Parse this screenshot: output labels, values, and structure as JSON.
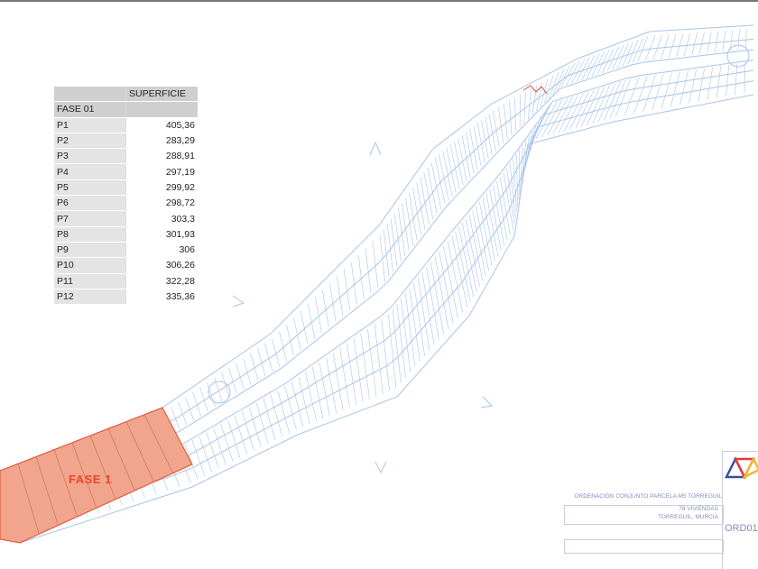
{
  "table": {
    "header_col": "SUPERFICIE",
    "header_row": "FASE 01",
    "rows": [
      {
        "parcel": "P1",
        "area": "405,36"
      },
      {
        "parcel": "P2",
        "area": "283,29"
      },
      {
        "parcel": "P3",
        "area": "288,91"
      },
      {
        "parcel": "P4",
        "area": "297,19"
      },
      {
        "parcel": "P5",
        "area": "299,92"
      },
      {
        "parcel": "P6",
        "area": "298,72"
      },
      {
        "parcel": "P7",
        "area": "303,3"
      },
      {
        "parcel": "P8",
        "area": "301,93"
      },
      {
        "parcel": "P9",
        "area": "306"
      },
      {
        "parcel": "P10",
        "area": "306,26"
      },
      {
        "parcel": "P11",
        "area": "322,28"
      },
      {
        "parcel": "P12",
        "area": "335,36"
      }
    ]
  },
  "plan": {
    "phase_label": "FASE 1",
    "line_color": "#a9c4ea",
    "phase_fill": "#f0a58c",
    "phase_stroke": "#e8492a"
  },
  "title_block": {
    "title": "ORDENACIÓN CONJUNTO PARCELA M5 TORREGUIL",
    "dwellings": "78 VIVIENDAS",
    "location": "TORREGUIL, MURCIA",
    "drawing_code": "ORD01",
    "logo_colors": [
      "#3a4fa0",
      "#e23b3b",
      "#f2b431"
    ]
  }
}
